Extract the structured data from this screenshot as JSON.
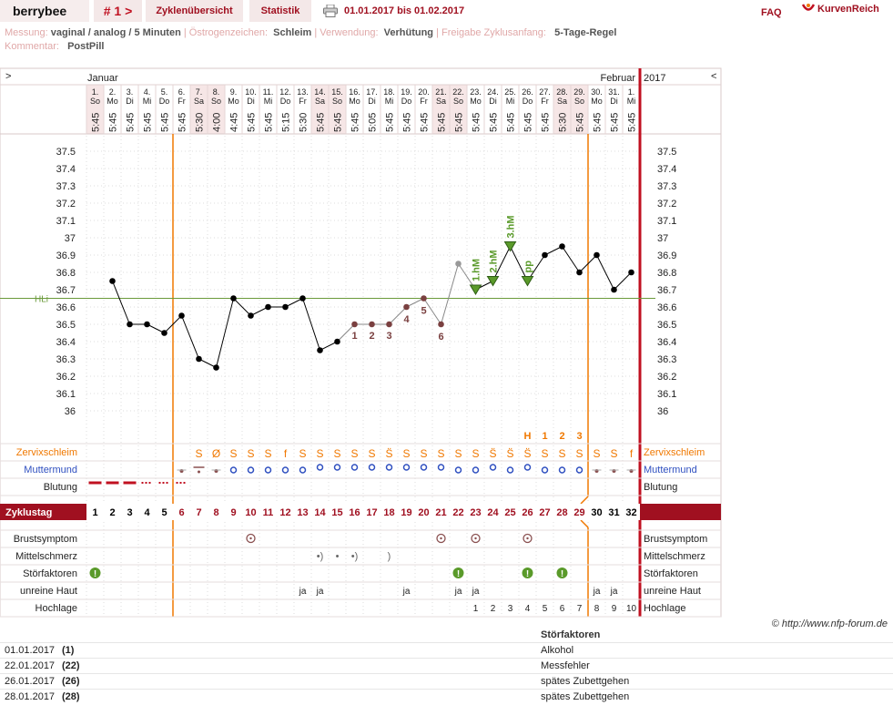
{
  "header": {
    "brand": "berrybee",
    "cycle_nav": "# 1 >",
    "tab_overview": "Zyklenübersicht",
    "tab_stats": "Statistik",
    "date_range": "01.01.2017 bis 01.02.2017",
    "faq": "FAQ",
    "logo_text": "KurvenReich"
  },
  "meta": {
    "messung_label": "Messung:",
    "messung_value": "vaginal / analog / 5 Minuten",
    "oestrogen_label": "Östrogenzeichen:",
    "oestrogen_value": "Schleim",
    "verwendung_label": "Verwendung:",
    "verwendung_value": "Verhütung",
    "freigabe_label": "Freigabe Zyklusanfang:",
    "freigabe_value": "5-Tage-Regel",
    "kommentar_label": "Kommentar:",
    "kommentar_value": "PostPill"
  },
  "chart_data": {
    "type": "line",
    "month_left": "Januar",
    "month_right": "Februar",
    "year": "2017",
    "nav_left": ">",
    "nav_right": "<",
    "dates": [
      "1.",
      "2.",
      "3.",
      "4.",
      "5.",
      "6.",
      "7.",
      "8.",
      "9.",
      "10.",
      "11.",
      "12.",
      "13.",
      "14.",
      "15.",
      "16.",
      "17.",
      "18.",
      "19.",
      "20.",
      "21.",
      "22.",
      "23.",
      "24.",
      "25.",
      "26.",
      "27.",
      "28.",
      "29.",
      "30.",
      "31.",
      "1."
    ],
    "weekdays": [
      "So",
      "Mo",
      "Di",
      "Mi",
      "Do",
      "Fr",
      "Sa",
      "So",
      "Mo",
      "Di",
      "Mi",
      "Do",
      "Fr",
      "Sa",
      "So",
      "Mo",
      "Di",
      "Mi",
      "Do",
      "Fr",
      "Sa",
      "So",
      "Mo",
      "Di",
      "Mi",
      "Do",
      "Fr",
      "Sa",
      "So",
      "Mo",
      "Di",
      "Mi"
    ],
    "times": [
      "5:45",
      "5:45",
      "5:45",
      "5:45",
      "5:45",
      "5:45",
      "5:30",
      "4:00",
      "4:45",
      "5:45",
      "5:45",
      "5:15",
      "5:30",
      "5:45",
      "5:45",
      "5:45",
      "5:05",
      "5:45",
      "5:45",
      "5:45",
      "5:45",
      "5:45",
      "5:45",
      "5:45",
      "5:45",
      "5:45",
      "5:45",
      "5:30",
      "5:45",
      "5:45",
      "5:45",
      "5:45"
    ],
    "weekend_days": [
      1,
      7,
      8,
      14,
      15,
      21,
      22,
      28,
      29
    ],
    "temperature": [
      null,
      36.75,
      36.5,
      36.5,
      36.45,
      36.55,
      36.3,
      36.25,
      36.65,
      36.55,
      36.6,
      36.6,
      36.65,
      36.35,
      36.4,
      36.5,
      36.5,
      36.5,
      36.6,
      36.65,
      36.5,
      36.85,
      36.7,
      36.75,
      36.95,
      36.75,
      36.9,
      36.95,
      36.8,
      36.9,
      36.7,
      36.8
    ],
    "excluded_days": [
      22
    ],
    "y_ticks": [
      "37.5",
      "37.4",
      "37.3",
      "37.2",
      "37.1",
      "37",
      "36.9",
      "36.8",
      "36.7",
      "36.6",
      "36.5",
      "36.4",
      "36.3",
      "36.2",
      "36.1",
      "36"
    ],
    "ylim": [
      36.0,
      37.5
    ],
    "hili_label": "HLi",
    "hili_value": 36.65,
    "low_markers": [
      {
        "day": 16,
        "label": "1"
      },
      {
        "day": 17,
        "label": "2"
      },
      {
        "day": 18,
        "label": "3"
      },
      {
        "day": 19,
        "label": "4"
      },
      {
        "day": 20,
        "label": "5"
      },
      {
        "day": 21,
        "label": "6"
      }
    ],
    "high_markers": [
      {
        "day": 23,
        "label": "1.hM"
      },
      {
        "day": 24,
        "label": "2.hM"
      },
      {
        "day": 25,
        "label": "3.hM"
      },
      {
        "day": 26,
        "label": "pp"
      }
    ],
    "cycle_start_line_day": 6,
    "cycle_end_line_day": 29,
    "mucus_top_marks": [
      {
        "day": 26,
        "label": "H"
      },
      {
        "day": 27,
        "label": "1"
      },
      {
        "day": 28,
        "label": "2"
      },
      {
        "day": 29,
        "label": "3"
      }
    ],
    "mucus": [
      "",
      "",
      "",
      "",
      "",
      "",
      "S",
      "Ø",
      "S",
      "S",
      "S",
      "f",
      "S",
      "S",
      "S",
      "S",
      "S",
      "S̈",
      "S",
      "S",
      "S",
      "S",
      "S",
      "S̈",
      "S̈",
      "S̈",
      "S",
      "S",
      "S",
      "S",
      "S",
      "f"
    ],
    "cervix": [
      "",
      "",
      "",
      "",
      "",
      "dot",
      "bar",
      "dot",
      "ring",
      "ring",
      "ring",
      "ring",
      "ring",
      "ring",
      "ring",
      "ring",
      "ring",
      "ring",
      "ring",
      "ring",
      "ring",
      "ring",
      "ring",
      "ring",
      "ring",
      "ring",
      "ring",
      "ring",
      "ring",
      "dot",
      "dot",
      "dot"
    ],
    "bleeding": [
      "strong",
      "strong",
      "strong",
      "light",
      "light",
      "light",
      "",
      "",
      "",
      "",
      "",
      "",
      "",
      "",
      "",
      "",
      "",
      "",
      "",
      "",
      "",
      "",
      "",
      "",
      "",
      "",
      "",
      "",
      "",
      "",
      "",
      ""
    ],
    "cycle_days": [
      "1",
      "2",
      "3",
      "4",
      "5",
      "6",
      "7",
      "8",
      "9",
      "10",
      "11",
      "12",
      "13",
      "14",
      "15",
      "16",
      "17",
      "18",
      "19",
      "20",
      "21",
      "22",
      "23",
      "24",
      "25",
      "26",
      "27",
      "28",
      "29",
      "30",
      "31",
      "32"
    ],
    "breast_days": [
      10,
      21,
      23,
      26
    ],
    "pain_days": [
      14,
      15,
      16,
      18
    ],
    "disturb_days": [
      1,
      22,
      26,
      28
    ],
    "skin_days": [
      13,
      14,
      19,
      22,
      23,
      30,
      31
    ],
    "skin_label": "ja",
    "hochlage": [
      "",
      "",
      "",
      "",
      "",
      "",
      "",
      "",
      "",
      "",
      "",
      "",
      "",
      "",
      "",
      "",
      "",
      "",
      "",
      "",
      "",
      "",
      "1",
      "2",
      "3",
      "4",
      "5",
      "6",
      "7",
      "8",
      "9",
      "10"
    ]
  },
  "rows": {
    "zervix": "Zervixschleim",
    "muttermund": "Muttermund",
    "blutung": "Blutung",
    "zyklustag": "Zyklustag",
    "brust": "Brustsymptom",
    "mittel": "Mittelschmerz",
    "stoer": "Störfaktoren",
    "haut": "unreine Haut",
    "hoch": "Hochlage"
  },
  "credit": "© http://www.nfp-forum.de",
  "footer": {
    "header": "Störfaktoren",
    "rows": [
      {
        "date": "01.01.2017",
        "day": "(1)",
        "factor": "Alkohol"
      },
      {
        "date": "22.01.2017",
        "day": "(22)",
        "factor": "Messfehler"
      },
      {
        "date": "26.01.2017",
        "day": "(26)",
        "factor": "spätes Zubettgehen"
      },
      {
        "date": "28.01.2017",
        "day": "(28)",
        "factor": "spätes Zubettgehen"
      }
    ]
  },
  "colors": {
    "accent": "#a01020",
    "orange": "#f07800",
    "blue": "#3050c0",
    "green": "#5a9a2a",
    "temp_dot": "#000000",
    "low_marker": "#7a4040"
  }
}
